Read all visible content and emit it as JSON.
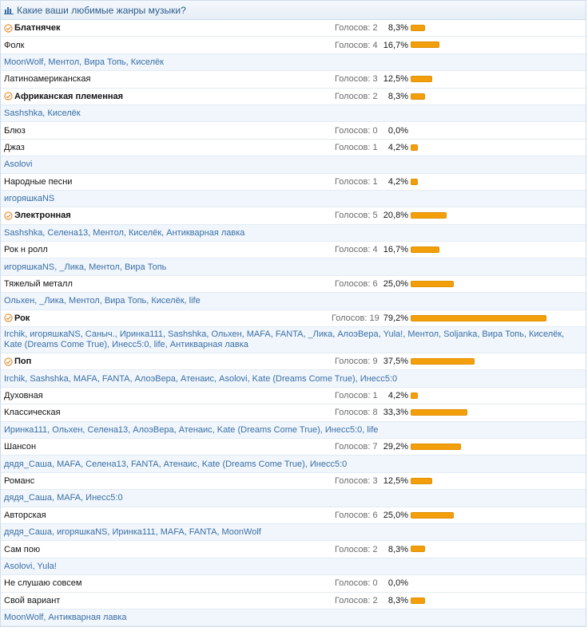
{
  "poll": {
    "question": "Какие ваши любимые жанры музыки?",
    "votes_label": "Голосов:",
    "accent_color": "#f29f0b",
    "options": [
      {
        "name": "Блатнячек",
        "voted": true,
        "votes": 2,
        "percent": "8,3%",
        "share": 8.3,
        "voters": ""
      },
      {
        "name": "Фолк",
        "voted": false,
        "votes": 4,
        "percent": "16,7%",
        "share": 16.7,
        "voters": "MoonWolf, Ментол, Вира Топь, Киселёк"
      },
      {
        "name": "Латиноамериканская",
        "voted": false,
        "votes": 3,
        "percent": "12,5%",
        "share": 12.5,
        "voters": ""
      },
      {
        "name": "Африканская племенная",
        "voted": true,
        "votes": 2,
        "percent": "8,3%",
        "share": 8.3,
        "voters": "Sashshka, Киселёк"
      },
      {
        "name": "Блюз",
        "voted": false,
        "votes": 0,
        "percent": "0,0%",
        "share": 0,
        "voters": ""
      },
      {
        "name": "Джаз",
        "voted": false,
        "votes": 1,
        "percent": "4,2%",
        "share": 4.2,
        "voters": "Asolovi"
      },
      {
        "name": "Народные песни",
        "voted": false,
        "votes": 1,
        "percent": "4,2%",
        "share": 4.2,
        "voters": "игоряшкаNS"
      },
      {
        "name": "Электронная",
        "voted": true,
        "votes": 5,
        "percent": "20,8%",
        "share": 20.8,
        "voters": "Sashshka, Селена13, Ментол, Киселёк, Антикварная лавка"
      },
      {
        "name": "Рок н ролл",
        "voted": false,
        "votes": 4,
        "percent": "16,7%",
        "share": 16.7,
        "voters": "игоряшкаNS, _Лика, Ментол, Вира Топь"
      },
      {
        "name": "Тяжелый металл",
        "voted": false,
        "votes": 6,
        "percent": "25,0%",
        "share": 25.0,
        "voters": "Ольхен, _Лика, Ментол, Вира Топь, Киселёк, life"
      },
      {
        "name": "Рок",
        "voted": true,
        "votes": 19,
        "percent": "79,2%",
        "share": 79.2,
        "voters": "Irchik, игоряшкаNS, Саныч., Иринка111, Sashshka, Ольхен, MAFA, FANTA, _Лика, АлоэВера, Yula!, Ментол, Soljanka, Вира Топь, Киселёк, Kate (Dreams Come True), Инесс5:0, life, Антикварная лавка"
      },
      {
        "name": "Поп",
        "voted": true,
        "votes": 9,
        "percent": "37,5%",
        "share": 37.5,
        "voters": "Irchik, Sashshka, MAFA, FANTA, АлоэВера, Атенаис, Asolovi, Kate (Dreams Come True), Инесс5:0"
      },
      {
        "name": "Духовная",
        "voted": false,
        "votes": 1,
        "percent": "4,2%",
        "share": 4.2,
        "voters": ""
      },
      {
        "name": "Классическая",
        "voted": false,
        "votes": 8,
        "percent": "33,3%",
        "share": 33.3,
        "voters": "Иринка111, Ольхен, Селена13, АлоэВера, Атенаис, Kate (Dreams Come True), Инесс5:0, life"
      },
      {
        "name": "Шансон",
        "voted": false,
        "votes": 7,
        "percent": "29,2%",
        "share": 29.2,
        "voters": "дядя_Саша, MAFA, Селена13, FANTA, Атенаис, Kate (Dreams Come True), Инесс5:0"
      },
      {
        "name": "Романс",
        "voted": false,
        "votes": 3,
        "percent": "12,5%",
        "share": 12.5,
        "voters": "дядя_Саша, MAFA, Инесс5:0"
      },
      {
        "name": "Авторская",
        "voted": false,
        "votes": 6,
        "percent": "25,0%",
        "share": 25.0,
        "voters": "дядя_Саша, игоряшкаNS, Иринка111, MAFA, FANTA, MoonWolf"
      },
      {
        "name": "Сам пою",
        "voted": false,
        "votes": 2,
        "percent": "8,3%",
        "share": 8.3,
        "voters": "Asolovi, Yula!"
      },
      {
        "name": "Не слушаю совсем",
        "voted": false,
        "votes": 0,
        "percent": "0,0%",
        "share": 0,
        "voters": ""
      },
      {
        "name": "Свой вариант",
        "voted": false,
        "votes": 2,
        "percent": "8,3%",
        "share": 8.3,
        "voters": "MoonWolf, Антикварная лавка"
      }
    ]
  }
}
